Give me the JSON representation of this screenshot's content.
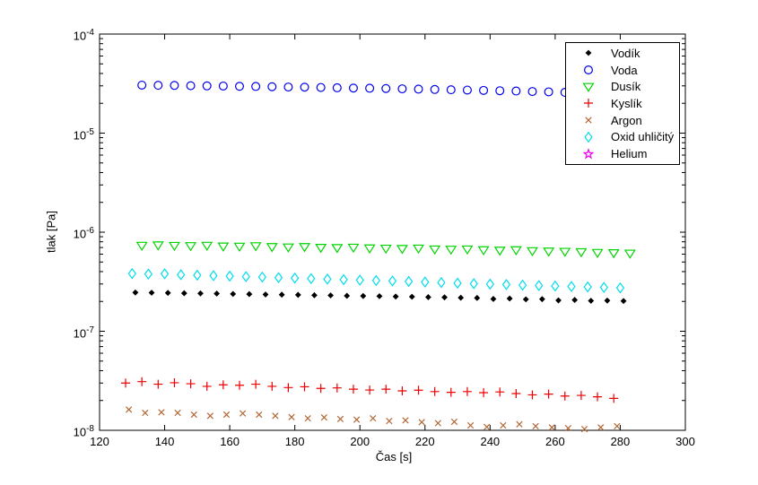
{
  "window": {
    "background": "#ffffff"
  },
  "axes": {
    "xlabel": "Čas [s]",
    "ylabel": "tlak [Pa]",
    "x_ticks": [
      120,
      140,
      160,
      180,
      200,
      220,
      240,
      260,
      280,
      300
    ],
    "y_tick_exponents": [
      -4,
      -5,
      -6,
      -7,
      -8
    ],
    "x_range": [
      120,
      300
    ],
    "y_range_exponents": [
      -4,
      -8
    ],
    "y_scale": "log",
    "grid": "off",
    "tick_color": "#000000"
  },
  "legend": {
    "position": "top-right",
    "items": [
      {
        "label": "Vodík",
        "marker": "dot",
        "color": "#000000"
      },
      {
        "label": "Voda",
        "marker": "circle",
        "color": "#0000EE"
      },
      {
        "label": "Dusík",
        "marker": "triangle-down",
        "color": "#00D400"
      },
      {
        "label": "Kyslík",
        "marker": "plus",
        "color": "#EE0000"
      },
      {
        "label": "Argon",
        "marker": "x",
        "color": "#B36633"
      },
      {
        "label": "Oxid uhličitý",
        "marker": "diamond",
        "color": "#00DDEE"
      },
      {
        "label": "Helium",
        "marker": "pentagram",
        "color": "#EE00EE"
      }
    ]
  },
  "chart_data": {
    "type": "scatter",
    "title": "",
    "xlabel": "Čas [s]",
    "ylabel": "tlak [Pa]",
    "x_axis": {
      "min": 120,
      "max": 300,
      "ticks": [
        120,
        140,
        160,
        180,
        200,
        220,
        240,
        260,
        280,
        300
      ]
    },
    "y_axis": {
      "scale": "log",
      "min": 1e-08,
      "max": 0.0001
    },
    "legend_position": "top-right",
    "series": [
      {
        "id": "vodik",
        "name": "Vodík",
        "marker": "dot",
        "color": "#000000",
        "x": [
          131,
          136,
          141,
          146,
          151,
          156,
          161,
          166,
          171,
          176,
          181,
          186,
          191,
          196,
          201,
          206,
          211,
          216,
          221,
          226,
          231,
          236,
          241,
          246,
          251,
          256,
          261,
          266,
          271,
          276,
          281
        ],
        "y": [
          2.46e-07,
          2.45e-07,
          2.44e-07,
          2.42e-07,
          2.41e-07,
          2.4e-07,
          2.38e-07,
          2.37e-07,
          2.35e-07,
          2.34e-07,
          2.33e-07,
          2.31e-07,
          2.3e-07,
          2.28e-07,
          2.27e-07,
          2.26e-07,
          2.24e-07,
          2.23e-07,
          2.21e-07,
          2.2e-07,
          2.18e-07,
          2.17e-07,
          2.12e-07,
          2.14e-07,
          2.1e-07,
          2.11e-07,
          2.05e-07,
          2.07e-07,
          2.03e-07,
          2.04e-07,
          2.02e-07
        ]
      },
      {
        "id": "voda",
        "name": "Voda",
        "marker": "circle",
        "color": "#0000EE",
        "x": [
          133,
          138,
          143,
          148,
          153,
          158,
          163,
          168,
          173,
          178,
          183,
          188,
          193,
          198,
          203,
          208,
          213,
          218,
          223,
          228,
          233,
          238,
          243,
          248,
          253,
          258,
          263,
          268,
          273,
          278,
          283
        ],
        "y": [
          3.05e-05,
          3.04e-05,
          3.03e-05,
          3.01e-05,
          3e-05,
          2.99e-05,
          2.97e-05,
          2.96e-05,
          2.94e-05,
          2.92e-05,
          2.91e-05,
          2.89e-05,
          2.87e-05,
          2.85e-05,
          2.84e-05,
          2.82e-05,
          2.8e-05,
          2.78e-05,
          2.76e-05,
          2.74e-05,
          2.72e-05,
          2.7e-05,
          2.68e-05,
          2.66e-05,
          2.63e-05,
          2.61e-05,
          2.58e-05,
          2.55e-05,
          2.51e-05,
          2.46e-05,
          2.41e-05
        ]
      },
      {
        "id": "dusik",
        "name": "Dusík",
        "marker": "triangle-down",
        "color": "#00D400",
        "x": [
          133,
          138,
          143,
          148,
          153,
          158,
          163,
          168,
          173,
          178,
          183,
          188,
          193,
          198,
          203,
          208,
          213,
          218,
          223,
          228,
          233,
          238,
          243,
          248,
          253,
          258,
          263,
          268,
          273,
          278,
          283
        ],
        "y": [
          7.3e-07,
          7.36e-07,
          7.28e-07,
          7.24e-07,
          7.3e-07,
          7.18e-07,
          7.15e-07,
          7.22e-07,
          7.08e-07,
          7.02e-07,
          7.08e-07,
          6.96e-07,
          6.92e-07,
          6.98e-07,
          6.86e-07,
          6.82e-07,
          6.78e-07,
          6.84e-07,
          6.7e-07,
          6.66e-07,
          6.7e-07,
          6.58e-07,
          6.52e-07,
          6.58e-07,
          6.44e-07,
          6.38e-07,
          6.34e-07,
          6.28e-07,
          6.18e-07,
          6.14e-07,
          6.08e-07
        ]
      },
      {
        "id": "kyslik",
        "name": "Kyslík",
        "marker": "plus",
        "color": "#EE0000",
        "x": [
          128,
          133,
          138,
          143,
          148,
          153,
          158,
          163,
          168,
          173,
          178,
          183,
          188,
          193,
          198,
          203,
          208,
          213,
          218,
          223,
          228,
          233,
          238,
          243,
          248,
          253,
          258,
          263,
          268,
          273,
          278
        ],
        "y": [
          3e-08,
          3.1e-08,
          2.92e-08,
          3.02e-08,
          2.95e-08,
          2.78e-08,
          2.88e-08,
          2.85e-08,
          2.92e-08,
          2.78e-08,
          2.7e-08,
          2.75e-08,
          2.65e-08,
          2.68e-08,
          2.6e-08,
          2.55e-08,
          2.6e-08,
          2.5e-08,
          2.54e-08,
          2.46e-08,
          2.42e-08,
          2.46e-08,
          2.4e-08,
          2.44e-08,
          2.35e-08,
          2.28e-08,
          2.32e-08,
          2.22e-08,
          2.25e-08,
          2.18e-08,
          2.1e-08
        ]
      },
      {
        "id": "argon",
        "name": "Argon",
        "marker": "x",
        "color": "#B36633",
        "x": [
          129,
          134,
          139,
          144,
          149,
          154,
          159,
          164,
          169,
          174,
          179,
          184,
          189,
          194,
          199,
          204,
          209,
          214,
          219,
          224,
          229,
          234,
          239,
          244,
          249,
          254,
          259,
          264,
          269,
          274,
          279
        ],
        "y": [
          1.62e-08,
          1.5e-08,
          1.52e-08,
          1.5e-08,
          1.44e-08,
          1.4e-08,
          1.44e-08,
          1.48e-08,
          1.44e-08,
          1.4e-08,
          1.36e-08,
          1.32e-08,
          1.35e-08,
          1.3e-08,
          1.28e-08,
          1.32e-08,
          1.24e-08,
          1.26e-08,
          1.21e-08,
          1.18e-08,
          1.22e-08,
          1.12e-08,
          1.08e-08,
          1.12e-08,
          1.15e-08,
          1.1e-08,
          1.07e-08,
          1.05e-08,
          1.03e-08,
          1.07e-08,
          1.1e-08
        ]
      },
      {
        "id": "oxid",
        "name": "Oxid uhličitý",
        "marker": "diamond",
        "color": "#00DDEE",
        "x": [
          130,
          135,
          140,
          145,
          150,
          155,
          160,
          165,
          170,
          175,
          180,
          185,
          190,
          195,
          200,
          205,
          210,
          215,
          220,
          225,
          230,
          235,
          240,
          245,
          250,
          255,
          260,
          265,
          270,
          275,
          280
        ],
        "y": [
          3.82e-07,
          3.78e-07,
          3.8e-07,
          3.72e-07,
          3.68e-07,
          3.64e-07,
          3.6e-07,
          3.56e-07,
          3.52e-07,
          3.48e-07,
          3.44e-07,
          3.4e-07,
          3.36e-07,
          3.32e-07,
          3.28e-07,
          3.25e-07,
          3.22e-07,
          3.18e-07,
          3.14e-07,
          3.1e-07,
          3.06e-07,
          3.02e-07,
          2.99e-07,
          2.96e-07,
          2.92e-07,
          2.89e-07,
          2.86e-07,
          2.83e-07,
          2.8e-07,
          2.77e-07,
          2.74e-07
        ]
      },
      {
        "id": "helium",
        "name": "Helium",
        "marker": "pentagram",
        "color": "#EE00EE",
        "x": [],
        "y": []
      }
    ]
  }
}
